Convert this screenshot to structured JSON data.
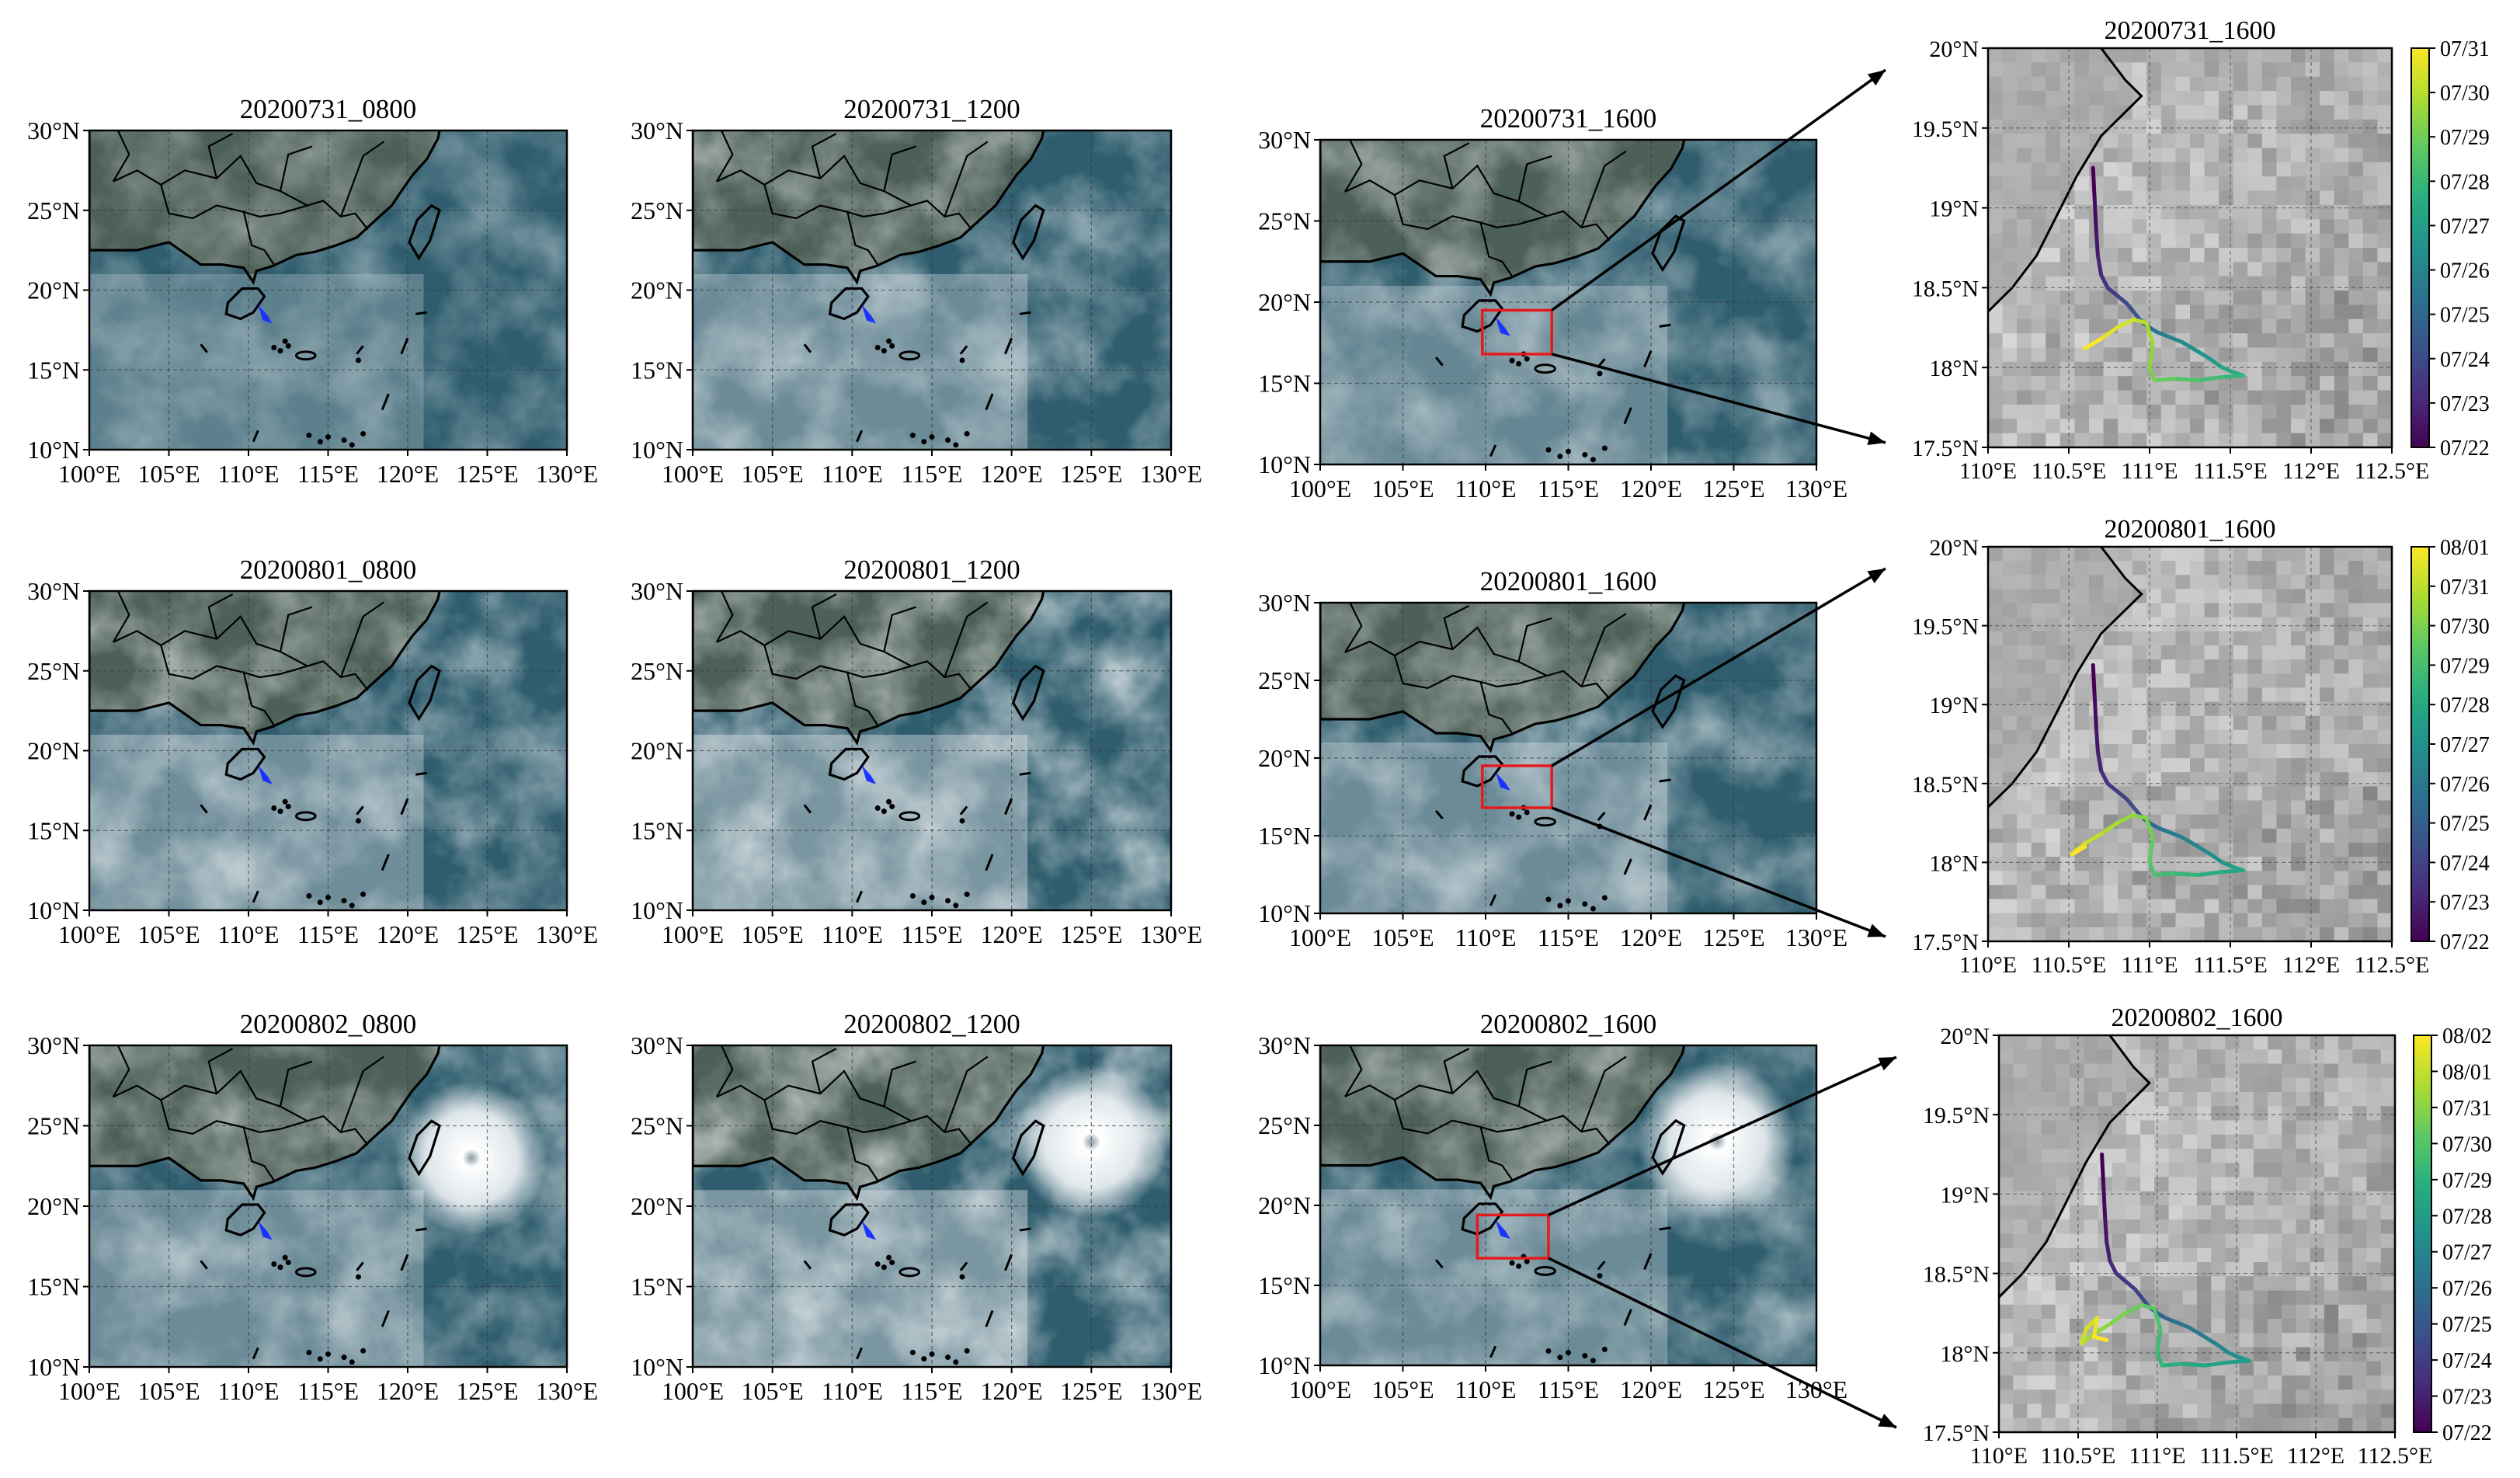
{
  "figure_kind": "satellite cloud-image panels with drift-trajectory zoom-ins",
  "colors": {
    "frame": "#000000",
    "box": "#e41a1c",
    "trajectory_marker": "#1a33ff",
    "grid": "#333333",
    "coast": "#000000",
    "colormap": [
      "#440154",
      "#472d7b",
      "#3b528b",
      "#2c728e",
      "#21918c",
      "#28ae80",
      "#5ec962",
      "#addc30",
      "#fde725"
    ]
  },
  "chart_data": [
    {
      "type": "map",
      "id": "r1c1",
      "title": "20200731_0800",
      "xlim": [
        100,
        130
      ],
      "ylim": [
        10,
        30
      ],
      "xticks": [
        "100°E",
        "105°E",
        "110°E",
        "115°E",
        "120°E",
        "125°E",
        "130°E"
      ],
      "yticks": [
        "10°N",
        "15°N",
        "20°N",
        "25°N",
        "30°N"
      ],
      "cloudiness": 0.45,
      "typhoon": null,
      "zoom_box": false
    },
    {
      "type": "map",
      "id": "r1c2",
      "title": "20200731_1200",
      "xlim": [
        100,
        130
      ],
      "ylim": [
        10,
        30
      ],
      "xticks": [
        "100°E",
        "105°E",
        "110°E",
        "115°E",
        "120°E",
        "125°E",
        "130°E"
      ],
      "yticks": [
        "10°N",
        "15°N",
        "20°N",
        "25°N",
        "30°N"
      ],
      "cloudiness": 0.6,
      "typhoon": null,
      "zoom_box": false
    },
    {
      "type": "map",
      "id": "r1c3",
      "title": "20200731_1600",
      "xlim": [
        100,
        130
      ],
      "ylim": [
        10,
        30
      ],
      "xticks": [
        "100°E",
        "105°E",
        "110°E",
        "115°E",
        "120°E",
        "125°E",
        "130°E"
      ],
      "yticks": [
        "10°N",
        "15°N",
        "20°N",
        "25°N",
        "30°N"
      ],
      "cloudiness": 0.55,
      "typhoon": null,
      "zoom_box": true,
      "box_lon": [
        109.8,
        114
      ],
      "box_lat": [
        16.8,
        19.5
      ]
    },
    {
      "type": "map",
      "id": "r2c1",
      "title": "20200801_0800",
      "xlim": [
        100,
        130
      ],
      "ylim": [
        10,
        30
      ],
      "xticks": [
        "100°E",
        "105°E",
        "110°E",
        "115°E",
        "120°E",
        "125°E",
        "130°E"
      ],
      "yticks": [
        "10°N",
        "15°N",
        "20°N",
        "25°N",
        "30°N"
      ],
      "cloudiness": 0.65,
      "typhoon": null,
      "zoom_box": false
    },
    {
      "type": "map",
      "id": "r2c2",
      "title": "20200801_1200",
      "xlim": [
        100,
        130
      ],
      "ylim": [
        10,
        30
      ],
      "xticks": [
        "100°E",
        "105°E",
        "110°E",
        "115°E",
        "120°E",
        "125°E",
        "130°E"
      ],
      "yticks": [
        "10°N",
        "15°N",
        "20°N",
        "25°N",
        "30°N"
      ],
      "cloudiness": 0.75,
      "typhoon": null,
      "zoom_box": false
    },
    {
      "type": "map",
      "id": "r2c3",
      "title": "20200801_1600",
      "xlim": [
        100,
        130
      ],
      "ylim": [
        10,
        30
      ],
      "xticks": [
        "100°E",
        "105°E",
        "110°E",
        "115°E",
        "120°E",
        "125°E",
        "130°E"
      ],
      "yticks": [
        "10°N",
        "15°N",
        "20°N",
        "25°N",
        "30°N"
      ],
      "cloudiness": 0.6,
      "typhoon": null,
      "zoom_box": true,
      "box_lon": [
        109.8,
        114
      ],
      "box_lat": [
        16.8,
        19.5
      ]
    },
    {
      "type": "map",
      "id": "r3c1",
      "title": "20200802_0800",
      "xlim": [
        100,
        130
      ],
      "ylim": [
        10,
        30
      ],
      "xticks": [
        "100°E",
        "105°E",
        "110°E",
        "115°E",
        "120°E",
        "125°E",
        "130°E"
      ],
      "yticks": [
        "10°N",
        "15°N",
        "20°N",
        "25°N",
        "30°N"
      ],
      "cloudiness": 0.6,
      "typhoon": [
        124,
        23
      ],
      "zoom_box": false
    },
    {
      "type": "map",
      "id": "r3c2",
      "title": "20200802_1200",
      "xlim": [
        100,
        130
      ],
      "ylim": [
        10,
        30
      ],
      "xticks": [
        "100°E",
        "105°E",
        "110°E",
        "115°E",
        "120°E",
        "125°E",
        "130°E"
      ],
      "yticks": [
        "10°N",
        "15°N",
        "20°N",
        "25°N",
        "30°N"
      ],
      "cloudiness": 0.75,
      "typhoon": [
        125,
        24
      ],
      "zoom_box": false
    },
    {
      "type": "map",
      "id": "r3c3",
      "title": "20200802_1600",
      "xlim": [
        100,
        130
      ],
      "ylim": [
        10,
        30
      ],
      "xticks": [
        "100°E",
        "105°E",
        "110°E",
        "115°E",
        "120°E",
        "125°E",
        "130°E"
      ],
      "yticks": [
        "10°N",
        "15°N",
        "20°N",
        "25°N",
        "30°N"
      ],
      "cloudiness": 0.6,
      "typhoon": [
        124,
        24
      ],
      "zoom_box": true,
      "box_lon": [
        109.5,
        113.8
      ],
      "box_lat": [
        16.7,
        19.4
      ]
    },
    {
      "type": "line",
      "id": "zoom1",
      "title": "20200731_1600",
      "xlim": [
        110,
        112.5
      ],
      "ylim": [
        17.5,
        20
      ],
      "xticks": [
        "110°E",
        "110.5°E",
        "111°E",
        "111.5°E",
        "112°E",
        "112.5°E"
      ],
      "yticks": [
        "17.5°N",
        "18°N",
        "18.5°N",
        "19°N",
        "19.5°N",
        "20°N"
      ],
      "colorbar_labels": [
        "07/22",
        "07/23",
        "07/24",
        "07/25",
        "07/26",
        "07/27",
        "07/28",
        "07/29",
        "07/30",
        "07/31"
      ],
      "trajectory": {
        "lon": [
          110.65,
          110.66,
          110.67,
          110.68,
          110.7,
          110.74,
          110.8,
          110.86,
          110.9,
          110.94,
          110.96,
          111.0,
          111.05,
          111.1,
          111.2,
          111.3,
          111.38,
          111.45,
          111.52,
          111.58,
          111.45,
          111.3,
          111.15,
          111.03,
          111.0,
          111.02,
          110.98,
          110.9,
          110.8,
          110.7,
          110.6
        ],
        "lat": [
          19.25,
          19.05,
          18.85,
          18.7,
          18.58,
          18.5,
          18.45,
          18.4,
          18.35,
          18.3,
          18.28,
          18.25,
          18.22,
          18.2,
          18.16,
          18.1,
          18.05,
          18.0,
          17.97,
          17.95,
          17.94,
          17.92,
          17.93,
          17.92,
          18.0,
          18.15,
          18.28,
          18.3,
          18.25,
          18.18,
          18.12
        ]
      }
    },
    {
      "type": "line",
      "id": "zoom2",
      "title": "20200801_1600",
      "xlim": [
        110,
        112.5
      ],
      "ylim": [
        17.5,
        20
      ],
      "xticks": [
        "110°E",
        "110.5°E",
        "111°E",
        "111.5°E",
        "112°E",
        "112.5°E"
      ],
      "yticks": [
        "17.5°N",
        "18°N",
        "18.5°N",
        "19°N",
        "19.5°N",
        "20°N"
      ],
      "colorbar_labels": [
        "07/22",
        "07/23",
        "07/24",
        "07/25",
        "07/26",
        "07/27",
        "07/28",
        "07/29",
        "07/30",
        "07/31",
        "08/01"
      ],
      "trajectory": {
        "lon": [
          110.65,
          110.66,
          110.67,
          110.68,
          110.7,
          110.74,
          110.8,
          110.86,
          110.9,
          110.94,
          110.96,
          111.0,
          111.05,
          111.1,
          111.2,
          111.3,
          111.38,
          111.45,
          111.52,
          111.58,
          111.45,
          111.3,
          111.15,
          111.03,
          111.0,
          111.02,
          110.98,
          110.9,
          110.8,
          110.7,
          110.6,
          110.55,
          110.52,
          110.6
        ],
        "lat": [
          19.25,
          19.05,
          18.85,
          18.7,
          18.58,
          18.5,
          18.45,
          18.4,
          18.35,
          18.3,
          18.28,
          18.25,
          18.22,
          18.2,
          18.16,
          18.1,
          18.05,
          18.0,
          17.97,
          17.95,
          17.94,
          17.92,
          17.93,
          17.92,
          18.0,
          18.15,
          18.28,
          18.3,
          18.25,
          18.18,
          18.12,
          18.08,
          18.05,
          18.1
        ]
      }
    },
    {
      "type": "line",
      "id": "zoom3",
      "title": "20200802_1600",
      "xlim": [
        110,
        112.5
      ],
      "ylim": [
        17.5,
        20
      ],
      "xticks": [
        "110°E",
        "110.5°E",
        "111°E",
        "111.5°E",
        "112°E",
        "112.5°E"
      ],
      "yticks": [
        "17.5°N",
        "18°N",
        "18.5°N",
        "19°N",
        "19.5°N",
        "20°N"
      ],
      "colorbar_labels": [
        "07/22",
        "07/23",
        "07/24",
        "07/25",
        "07/26",
        "07/27",
        "07/28",
        "07/29",
        "07/30",
        "07/31",
        "08/01",
        "08/02"
      ],
      "trajectory": {
        "lon": [
          110.65,
          110.66,
          110.67,
          110.68,
          110.7,
          110.74,
          110.8,
          110.86,
          110.9,
          110.94,
          110.96,
          111.0,
          111.05,
          111.1,
          111.2,
          111.3,
          111.38,
          111.45,
          111.52,
          111.58,
          111.45,
          111.3,
          111.15,
          111.03,
          111.0,
          111.02,
          110.98,
          110.9,
          110.8,
          110.7,
          110.6,
          110.55,
          110.52,
          110.55,
          110.62,
          110.6,
          110.68
        ],
        "lat": [
          19.25,
          19.05,
          18.85,
          18.7,
          18.58,
          18.5,
          18.45,
          18.4,
          18.35,
          18.3,
          18.28,
          18.25,
          18.22,
          18.2,
          18.16,
          18.1,
          18.05,
          18.0,
          17.97,
          17.95,
          17.94,
          17.92,
          17.93,
          17.92,
          18.0,
          18.15,
          18.28,
          18.3,
          18.25,
          18.18,
          18.12,
          18.08,
          18.06,
          18.15,
          18.22,
          18.1,
          18.08
        ]
      }
    }
  ]
}
